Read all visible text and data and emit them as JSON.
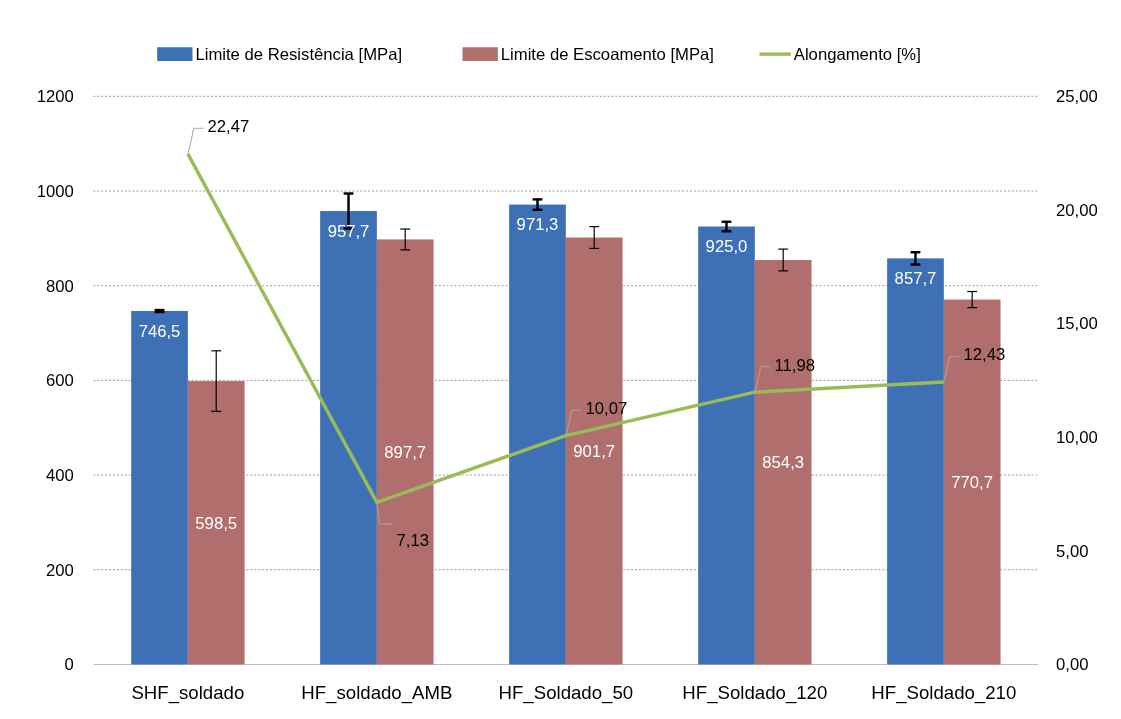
{
  "chart_data": {
    "type": "bar",
    "categories": [
      "SHF_soldado",
      "HF_soldado_AMB",
      "HF_Soldado_50",
      "HF_Soldado_120",
      "HF_Soldado_210"
    ],
    "series": [
      {
        "name": "Limite de Resistência [MPa]",
        "color": "#3d70b4",
        "values": [
          746.5,
          957.7,
          971.3,
          925.0,
          857.7
        ],
        "errors": [
          2,
          37,
          11,
          10,
          13
        ],
        "value_labels": [
          "746,5",
          "957,7",
          "971,3",
          "925,0",
          "857,7"
        ]
      },
      {
        "name": "Limite de Escoamento [MPa]",
        "color": "#b06e6c",
        "values": [
          598.5,
          897.7,
          901.7,
          854.3,
          770.7
        ],
        "errors": [
          64,
          22,
          23,
          23,
          17
        ],
        "value_labels": [
          "598,5",
          "897,7",
          "901,7",
          "854,3",
          "770,7"
        ]
      },
      {
        "name": "Alongamento [%]",
        "type": "line",
        "axis": "y2",
        "color": "#9bbb59",
        "values": [
          22.47,
          7.13,
          10.07,
          11.98,
          12.43
        ],
        "value_labels": [
          "22,47",
          "7,13",
          "10,07",
          "11,98",
          "12,43"
        ]
      }
    ],
    "ylim": [
      0,
      1200
    ],
    "yticks": [
      0,
      200,
      400,
      600,
      800,
      1000,
      1200
    ],
    "y2lim": [
      0,
      25
    ],
    "y2ticks": [
      {
        "value": 0,
        "label": "0,00"
      },
      {
        "value": 5,
        "label": "5,00"
      },
      {
        "value": 10,
        "label": "10,00"
      },
      {
        "value": 15,
        "label": "15,00"
      },
      {
        "value": 20,
        "label": "20,00"
      },
      {
        "value": 25,
        "label": "25,00"
      }
    ],
    "grid": "y",
    "legend": "top",
    "marker": "none",
    "line_style": "solid"
  }
}
